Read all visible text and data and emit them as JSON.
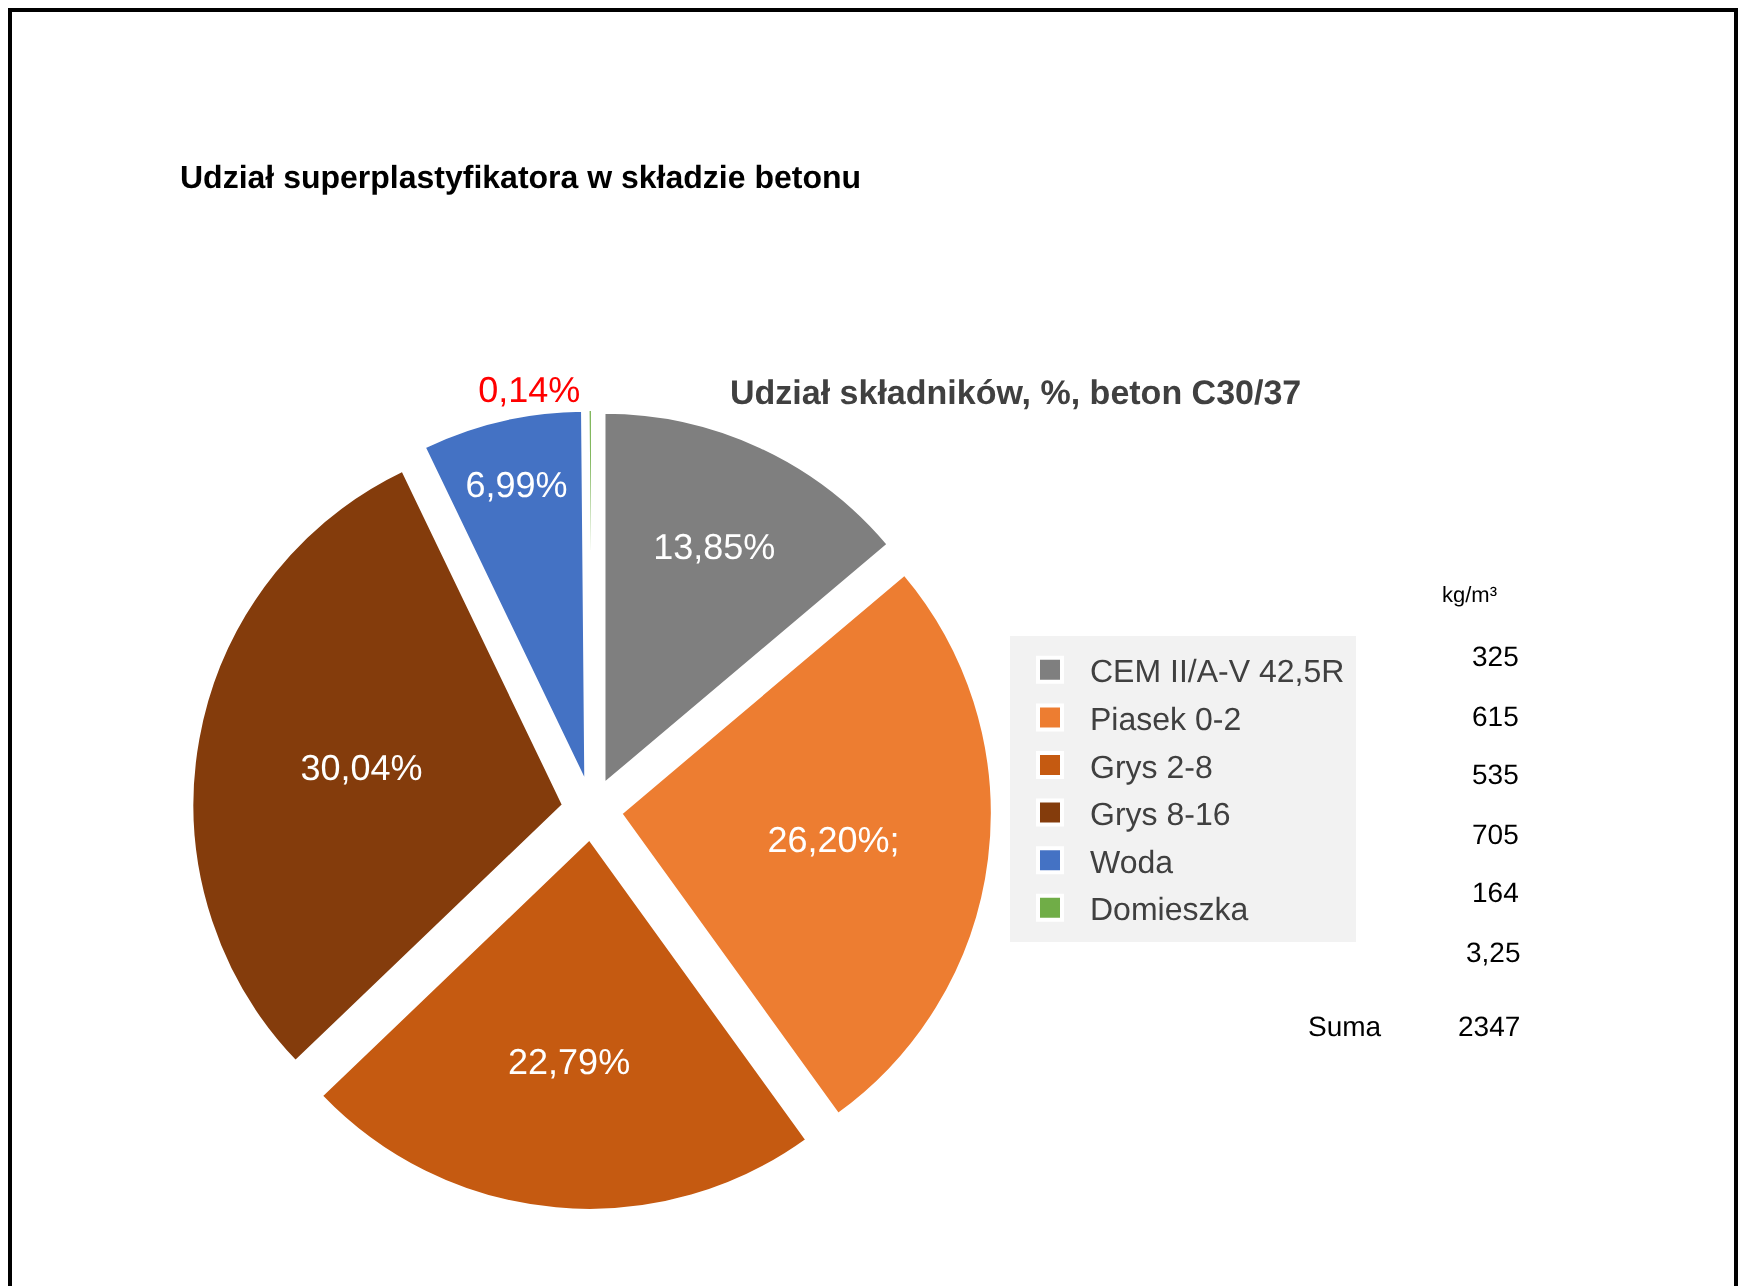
{
  "chart_data": {
    "type": "pie",
    "title": "Udział superplastyfikatora w składzie betonu",
    "subtitle": "Udział składników, %, beton C30/37",
    "categories": [
      "CEM II/A-V 42,5R",
      "Piasek 0-2",
      "Grys 2-8",
      "Grys 8-16",
      "Woda",
      "Domieszka"
    ],
    "values": [
      13.85,
      26.2,
      22.79,
      30.04,
      6.99,
      0.14
    ],
    "colors": [
      "#7f7f7f",
      "#ed7d31",
      "#c55a11",
      "#843c0c",
      "#4472c4",
      "#70ad47"
    ],
    "value_labels": [
      "13,85%",
      "26,20%;",
      "22,79%",
      "30,04%",
      "6,99%",
      "0,14%"
    ],
    "legend": "right",
    "annotations": [
      "kg/m³",
      "325",
      "615",
      "535",
      "705",
      "164",
      "3,25",
      "Suma",
      "2347"
    ]
  }
}
